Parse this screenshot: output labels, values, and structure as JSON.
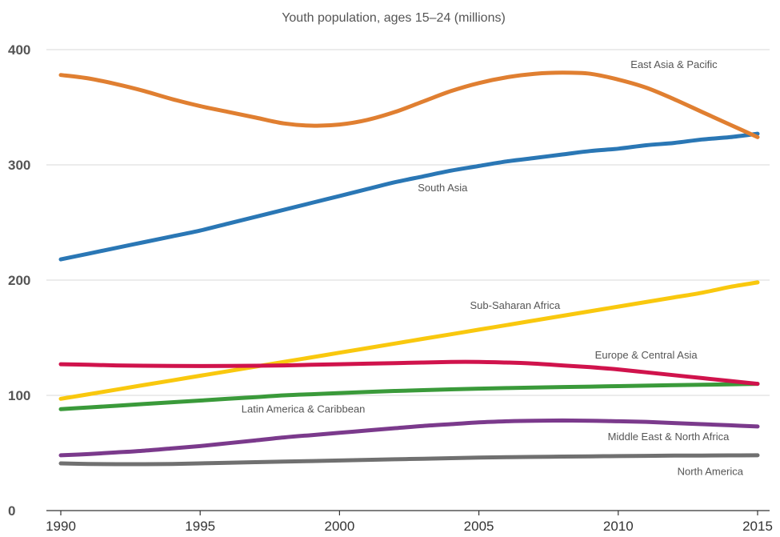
{
  "chart_data": {
    "type": "line",
    "title": "Youth population, ages 15–24 (millions)",
    "xlabel": "",
    "ylabel": "",
    "ylim": [
      0,
      400
    ],
    "xlim": [
      1990,
      2015
    ],
    "grid": true,
    "x_ticks": [
      "1990",
      "1995",
      "2000",
      "2005",
      "2010",
      "2015"
    ],
    "y_ticks": [
      "0",
      "100",
      "200",
      "300",
      "400"
    ],
    "x": [
      1990,
      1991,
      1992,
      1993,
      1994,
      1995,
      1996,
      1997,
      1998,
      1999,
      2000,
      2001,
      2002,
      2003,
      2004,
      2005,
      2006,
      2007,
      2008,
      2009,
      2010,
      2011,
      2012,
      2013,
      2014,
      2015
    ],
    "series": [
      {
        "name": "East Asia & Pacific",
        "color": "#e07f31",
        "values": [
          378,
          375,
          370,
          364,
          357,
          351,
          346,
          341,
          336,
          334,
          335,
          339,
          346,
          355,
          364,
          371,
          376,
          379,
          380,
          379,
          374,
          367,
          357,
          346,
          335,
          324
        ]
      },
      {
        "name": "South Asia",
        "color": "#2a77b5",
        "values": [
          218,
          223,
          228,
          233,
          238,
          243,
          249,
          255,
          261,
          267,
          273,
          279,
          285,
          290,
          295,
          299,
          303,
          306,
          309,
          312,
          314,
          317,
          319,
          322,
          324,
          327
        ]
      },
      {
        "name": "Sub-Saharan Africa",
        "color": "#f9c80e",
        "values": [
          97,
          101,
          105,
          109,
          113,
          117,
          121,
          125,
          129,
          133,
          137,
          141,
          145,
          149,
          153,
          157,
          161,
          165,
          169,
          173,
          177,
          181,
          185,
          189,
          194,
          198
        ]
      },
      {
        "name": "Europe & Central Asia",
        "color": "#d0134c",
        "values": [
          127,
          126.5,
          126,
          125.7,
          125.5,
          125.4,
          125.5,
          125.7,
          126,
          126.5,
          127,
          127.5,
          128,
          128.5,
          129,
          129,
          128.5,
          127.5,
          126,
          124.5,
          122.5,
          120,
          117.5,
          115,
          112.5,
          110
        ]
      },
      {
        "name": "Latin America & Caribbean",
        "color": "#3a9a3a",
        "values": [
          88,
          89.5,
          91,
          92.5,
          94,
          95.5,
          97,
          98.5,
          100,
          101,
          102,
          103,
          103.8,
          104.5,
          105.2,
          105.8,
          106.3,
          106.8,
          107.2,
          107.6,
          108,
          108.4,
          108.8,
          109.2,
          109.6,
          110
        ]
      },
      {
        "name": "Middle East & North Africa",
        "color": "#7b3a8c",
        "values": [
          48,
          49,
          50.5,
          52,
          54,
          56,
          58.5,
          61,
          63.5,
          65.5,
          67.5,
          69.5,
          71.5,
          73.5,
          75,
          76.5,
          77.5,
          78,
          78.2,
          78,
          77.5,
          77,
          76,
          75,
          74,
          73
        ]
      },
      {
        "name": "North America",
        "color": "#707070",
        "values": [
          41,
          40.5,
          40.3,
          40.3,
          40.5,
          41,
          41.5,
          42,
          42.5,
          43,
          43.5,
          44,
          44.5,
          45,
          45.5,
          46,
          46.3,
          46.6,
          46.9,
          47.1,
          47.3,
          47.5,
          47.7,
          47.8,
          47.9,
          48
        ]
      }
    ],
    "annotations": [
      {
        "text": "East Asia & Pacific",
        "series": 0,
        "x": 2012,
        "y": 384
      },
      {
        "text": "South Asia",
        "series": 1,
        "x": 2003.7,
        "y": 277
      },
      {
        "text": "Sub-Saharan Africa",
        "series": 2,
        "x": 2006.3,
        "y": 175
      },
      {
        "text": "Europe & Central Asia",
        "series": 3,
        "x": 2011,
        "y": 132
      },
      {
        "text": "Latin America & Caribbean",
        "series": 4,
        "x": 1998.7,
        "y": 85
      },
      {
        "text": "Middle East & North Africa",
        "series": 5,
        "x": 2011.8,
        "y": 61
      },
      {
        "text": "North America",
        "series": 6,
        "x": 2013.3,
        "y": 31
      }
    ]
  }
}
